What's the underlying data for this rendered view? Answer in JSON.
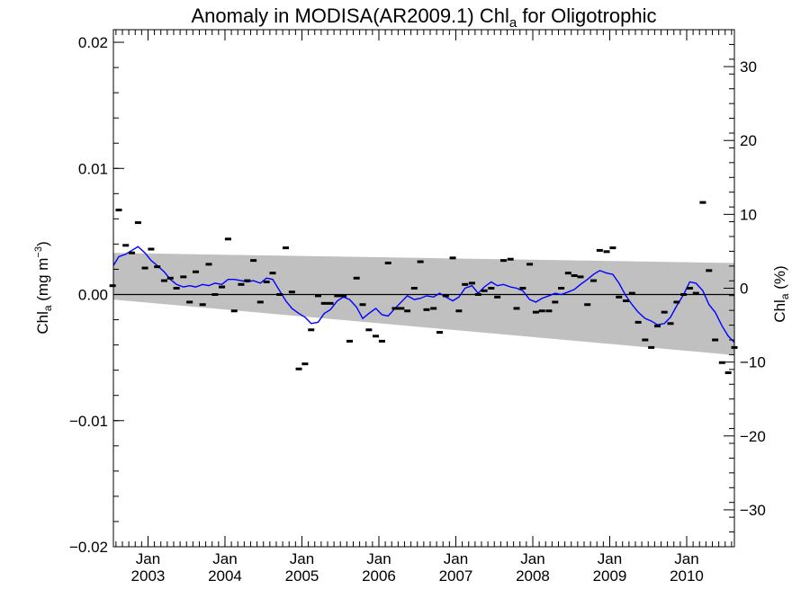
{
  "chart_data": {
    "type": "scatter",
    "title": "Anomaly in MODISA(AR2009.1) Chl",
    "title_subscript": "a",
    "title_suffix": " for Oligotrophic",
    "ylabel_left_main": "Chl",
    "ylabel_left_sub": "a",
    "ylabel_left_unit": " (mg m",
    "ylabel_left_sup": "−3",
    "ylabel_left_close": ")",
    "ylabel_right_main": "Chl",
    "ylabel_right_sub": "a",
    "ylabel_right_unit": " (%)",
    "ylim_left": [
      -0.02,
      0.021
    ],
    "ylim_right": [
      -35,
      35
    ],
    "xlim": [
      2002.55,
      2010.62
    ],
    "left_ticks": [
      {
        "v": 0.02,
        "label": "0.02"
      },
      {
        "v": 0.01,
        "label": "0.01"
      },
      {
        "v": 0.0,
        "label": "0.00"
      },
      {
        "v": -0.01,
        "label": "−0.01"
      },
      {
        "v": -0.02,
        "label": "−0.02"
      }
    ],
    "right_ticks": [
      {
        "v": 30,
        "label": "30"
      },
      {
        "v": 20,
        "label": "20"
      },
      {
        "v": 10,
        "label": "10"
      },
      {
        "v": 0,
        "label": "0"
      },
      {
        "v": -10,
        "label": "−10"
      },
      {
        "v": -20,
        "label": "−20"
      },
      {
        "v": -30,
        "label": "−30"
      }
    ],
    "x_ticks": [
      {
        "v": 2003.0,
        "month": "Jan",
        "year": "2003"
      },
      {
        "v": 2004.0,
        "month": "Jan",
        "year": "2004"
      },
      {
        "v": 2005.0,
        "month": "Jan",
        "year": "2005"
      },
      {
        "v": 2006.0,
        "month": "Jan",
        "year": "2006"
      },
      {
        "v": 2007.0,
        "month": "Jan",
        "year": "2007"
      },
      {
        "v": 2008.0,
        "month": "Jan",
        "year": "2008"
      },
      {
        "v": 2009.0,
        "month": "Jan",
        "year": "2009"
      },
      {
        "v": 2010.0,
        "month": "Jan",
        "year": "2010"
      }
    ],
    "trend_band": {
      "start": [
        2002.55,
        0.0033,
        -0.0004
      ],
      "end": [
        2010.62,
        0.0025,
        -0.0048
      ]
    },
    "band_color": "#c0c0c0",
    "smooth_color": "#0000ff",
    "zero_line": 0.0,
    "points": [
      [
        2002.54,
        0.0007
      ],
      [
        2002.62,
        0.0067
      ],
      [
        2002.71,
        0.0039
      ],
      [
        2002.79,
        0.0033
      ],
      [
        2002.87,
        0.0057
      ],
      [
        2002.96,
        0.0021
      ],
      [
        2003.04,
        0.0036
      ],
      [
        2003.12,
        0.0022
      ],
      [
        2003.21,
        0.0011
      ],
      [
        2003.29,
        0.0013
      ],
      [
        2003.37,
        0.0005
      ],
      [
        2003.46,
        0.0014
      ],
      [
        2003.54,
        -0.0006
      ],
      [
        2003.62,
        0.0018
      ],
      [
        2003.71,
        -0.0008
      ],
      [
        2003.79,
        0.0024
      ],
      [
        2003.87,
        0.0
      ],
      [
        2003.96,
        0.0006
      ],
      [
        2004.04,
        0.0044
      ],
      [
        2004.12,
        -0.0013
      ],
      [
        2004.21,
        0.0008
      ],
      [
        2004.29,
        0.0011
      ],
      [
        2004.37,
        0.0027
      ],
      [
        2004.46,
        -0.0006
      ],
      [
        2004.54,
        0.001
      ],
      [
        2004.62,
        0.0017
      ],
      [
        2004.71,
        0.0
      ],
      [
        2004.79,
        0.0037
      ],
      [
        2004.87,
        0.0002
      ],
      [
        2004.96,
        -0.0059
      ],
      [
        2005.04,
        -0.0055
      ],
      [
        2005.12,
        -0.0028
      ],
      [
        2005.21,
        -0.0001
      ],
      [
        2005.29,
        -0.0007
      ],
      [
        2005.37,
        -0.0007
      ],
      [
        2005.46,
        -0.0001
      ],
      [
        2005.54,
        -0.0001
      ],
      [
        2005.62,
        -0.0037
      ],
      [
        2005.71,
        0.0013
      ],
      [
        2005.79,
        -0.0008
      ],
      [
        2005.87,
        -0.0028
      ],
      [
        2005.96,
        -0.0033
      ],
      [
        2006.04,
        -0.0037
      ],
      [
        2006.12,
        0.0025
      ],
      [
        2006.21,
        -0.0011
      ],
      [
        2006.29,
        -0.0011
      ],
      [
        2006.37,
        -0.0013
      ],
      [
        2006.46,
        0.0005
      ],
      [
        2006.54,
        0.0026
      ],
      [
        2006.62,
        -0.0012
      ],
      [
        2006.71,
        -0.0011
      ],
      [
        2006.79,
        -0.003
      ],
      [
        2006.87,
        -0.0001
      ],
      [
        2006.96,
        0.0029
      ],
      [
        2007.04,
        -0.0013
      ],
      [
        2007.12,
        0.0008
      ],
      [
        2007.21,
        0.0009
      ],
      [
        2007.29,
        0.0
      ],
      [
        2007.37,
        0.0003
      ],
      [
        2007.46,
        0.0005
      ],
      [
        2007.54,
        -0.0002
      ],
      [
        2007.62,
        0.0027
      ],
      [
        2007.71,
        0.0028
      ],
      [
        2007.79,
        -0.0011
      ],
      [
        2007.87,
        0.0005
      ],
      [
        2007.96,
        0.0024
      ],
      [
        2008.04,
        -0.0014
      ],
      [
        2008.12,
        -0.0013
      ],
      [
        2008.21,
        -0.0013
      ],
      [
        2008.29,
        -0.0006
      ],
      [
        2008.37,
        0.0005
      ],
      [
        2008.46,
        0.0017
      ],
      [
        2008.54,
        0.0015
      ],
      [
        2008.62,
        0.0014
      ],
      [
        2008.71,
        -0.0008
      ],
      [
        2008.79,
        0.0011
      ],
      [
        2008.87,
        0.0035
      ],
      [
        2008.96,
        0.0034
      ],
      [
        2009.04,
        0.0037
      ],
      [
        2009.12,
        -0.0002
      ],
      [
        2009.21,
        -0.0005
      ],
      [
        2009.29,
        0.0001
      ],
      [
        2009.37,
        -0.0022
      ],
      [
        2009.46,
        -0.0036
      ],
      [
        2009.54,
        -0.0042
      ],
      [
        2009.62,
        -0.0025
      ],
      [
        2009.71,
        -0.0014
      ],
      [
        2009.79,
        -0.0023
      ],
      [
        2009.87,
        -0.0006
      ],
      [
        2009.96,
        0.0
      ],
      [
        2010.04,
        0.0005
      ],
      [
        2010.12,
        0.0001
      ],
      [
        2010.21,
        0.0073
      ],
      [
        2010.29,
        0.0019
      ],
      [
        2010.37,
        -0.0036
      ],
      [
        2010.46,
        -0.0054
      ],
      [
        2010.54,
        -0.0062
      ],
      [
        2010.62,
        -0.0042
      ]
    ],
    "smooth": [
      [
        2002.55,
        0.0023
      ],
      [
        2002.62,
        0.003
      ],
      [
        2002.71,
        0.0032
      ],
      [
        2002.79,
        0.0035
      ],
      [
        2002.87,
        0.0038
      ],
      [
        2002.96,
        0.0033
      ],
      [
        2003.04,
        0.0027
      ],
      [
        2003.12,
        0.0023
      ],
      [
        2003.21,
        0.0018
      ],
      [
        2003.29,
        0.0012
      ],
      [
        2003.37,
        0.0008
      ],
      [
        2003.46,
        0.0006
      ],
      [
        2003.54,
        0.0007
      ],
      [
        2003.62,
        0.0006
      ],
      [
        2003.71,
        0.0008
      ],
      [
        2003.79,
        0.0007
      ],
      [
        2003.87,
        0.0009
      ],
      [
        2003.96,
        0.0008
      ],
      [
        2004.04,
        0.0012
      ],
      [
        2004.12,
        0.0012
      ],
      [
        2004.21,
        0.0011
      ],
      [
        2004.29,
        0.001
      ],
      [
        2004.37,
        0.0011
      ],
      [
        2004.46,
        0.0009
      ],
      [
        2004.54,
        0.0013
      ],
      [
        2004.62,
        0.0012
      ],
      [
        2004.71,
        0.0003
      ],
      [
        2004.79,
        -0.0005
      ],
      [
        2004.87,
        -0.0011
      ],
      [
        2004.96,
        -0.0015
      ],
      [
        2005.04,
        -0.0018
      ],
      [
        2005.12,
        -0.0023
      ],
      [
        2005.21,
        -0.0022
      ],
      [
        2005.29,
        -0.0015
      ],
      [
        2005.37,
        -0.0012
      ],
      [
        2005.46,
        -0.0005
      ],
      [
        2005.54,
        -0.0002
      ],
      [
        2005.62,
        -0.0004
      ],
      [
        2005.71,
        -0.001
      ],
      [
        2005.79,
        -0.0019
      ],
      [
        2005.87,
        -0.0015
      ],
      [
        2005.96,
        -0.0011
      ],
      [
        2006.04,
        -0.0016
      ],
      [
        2006.12,
        -0.0017
      ],
      [
        2006.21,
        -0.0011
      ],
      [
        2006.29,
        -0.0006
      ],
      [
        2006.37,
        -0.0001
      ],
      [
        2006.46,
        -0.0004
      ],
      [
        2006.54,
        -0.0003
      ],
      [
        2006.62,
        -0.0001
      ],
      [
        2006.71,
        -0.0002
      ],
      [
        2006.79,
        0.0001
      ],
      [
        2006.87,
        -0.0002
      ],
      [
        2006.96,
        -0.0005
      ],
      [
        2007.04,
        -0.0002
      ],
      [
        2007.12,
        0.0005
      ],
      [
        2007.21,
        0.0007
      ],
      [
        2007.29,
        0.0001
      ],
      [
        2007.37,
        0.0006
      ],
      [
        2007.46,
        0.001
      ],
      [
        2007.54,
        0.0007
      ],
      [
        2007.62,
        0.0008
      ],
      [
        2007.71,
        0.0006
      ],
      [
        2007.79,
        0.0005
      ],
      [
        2007.87,
        0.0003
      ],
      [
        2007.96,
        -0.0004
      ],
      [
        2008.04,
        -0.0006
      ],
      [
        2008.12,
        -0.0003
      ],
      [
        2008.21,
        -0.0001
      ],
      [
        2008.29,
        0.0001
      ],
      [
        2008.37,
        0.0
      ],
      [
        2008.46,
        0.0002
      ],
      [
        2008.54,
        0.0004
      ],
      [
        2008.62,
        0.0008
      ],
      [
        2008.71,
        0.0012
      ],
      [
        2008.79,
        0.0016
      ],
      [
        2008.87,
        0.0019
      ],
      [
        2008.96,
        0.0017
      ],
      [
        2009.04,
        0.0016
      ],
      [
        2009.12,
        0.0009
      ],
      [
        2009.21,
        -0.0001
      ],
      [
        2009.29,
        -0.0008
      ],
      [
        2009.37,
        -0.0014
      ],
      [
        2009.46,
        -0.0019
      ],
      [
        2009.54,
        -0.0021
      ],
      [
        2009.62,
        -0.0024
      ],
      [
        2009.71,
        -0.0023
      ],
      [
        2009.79,
        -0.0018
      ],
      [
        2009.87,
        -0.0009
      ],
      [
        2009.96,
        0.0
      ],
      [
        2010.04,
        0.001
      ],
      [
        2010.12,
        0.0009
      ],
      [
        2010.21,
        0.0003
      ],
      [
        2010.29,
        -0.0008
      ],
      [
        2010.37,
        -0.0014
      ],
      [
        2010.46,
        -0.0025
      ],
      [
        2010.54,
        -0.0033
      ],
      [
        2010.62,
        -0.0038
      ]
    ]
  }
}
